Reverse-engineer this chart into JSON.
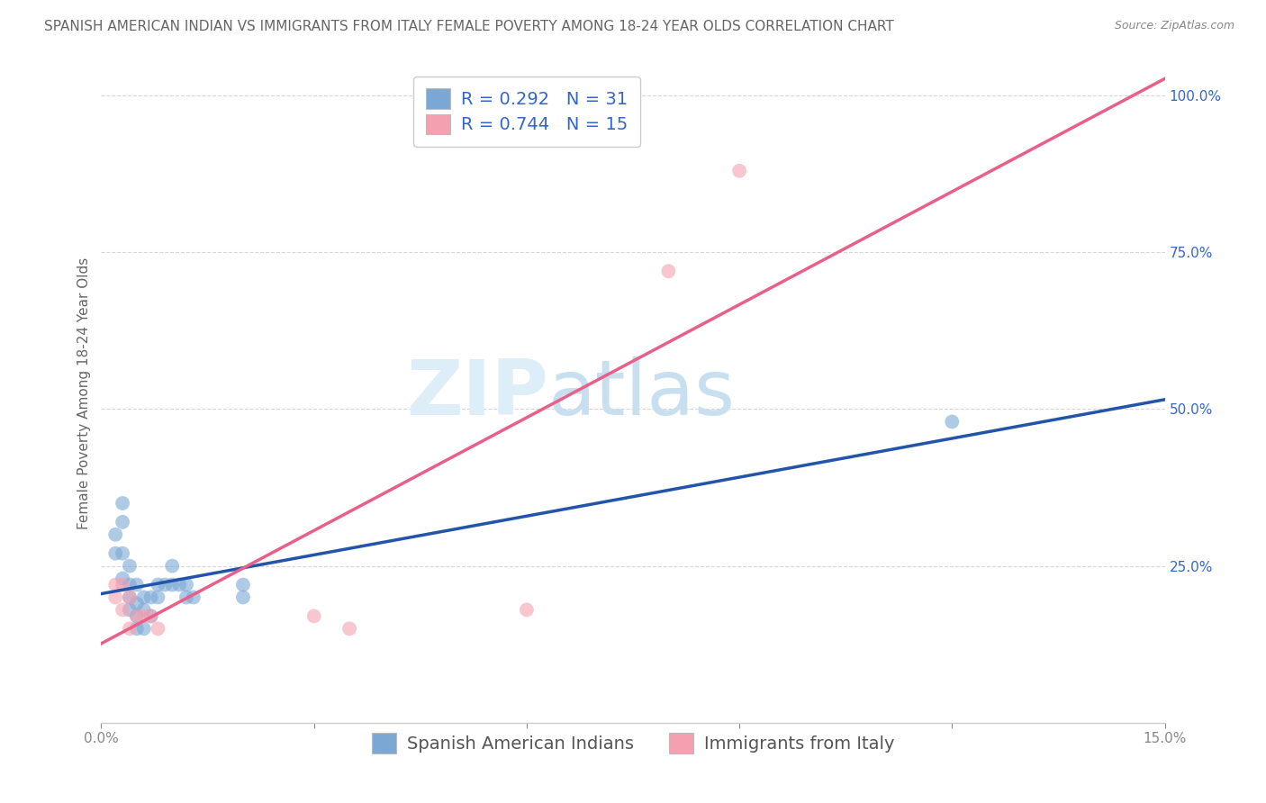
{
  "title": "SPANISH AMERICAN INDIAN VS IMMIGRANTS FROM ITALY FEMALE POVERTY AMONG 18-24 YEAR OLDS CORRELATION CHART",
  "source": "Source: ZipAtlas.com",
  "ylabel": "Female Poverty Among 18-24 Year Olds",
  "xlim": [
    0.0,
    0.15
  ],
  "ylim": [
    0.0,
    1.05
  ],
  "xticks": [
    0.0,
    0.03,
    0.06,
    0.09,
    0.12,
    0.15
  ],
  "xticklabels": [
    "0.0%",
    "",
    "",
    "",
    "",
    "15.0%"
  ],
  "yticks": [
    0.0,
    0.25,
    0.5,
    0.75,
    1.0
  ],
  "yticklabels": [
    "",
    "25.0%",
    "50.0%",
    "75.0%",
    "100.0%"
  ],
  "series1_name": "Spanish American Indians",
  "series1_color": "#7ba7d4",
  "series1_R": "0.292",
  "series1_N": "31",
  "series1_line_color": "#2255aa",
  "series2_name": "Immigrants from Italy",
  "series2_color": "#f4a0b0",
  "series2_R": "0.744",
  "series2_N": "15",
  "series2_line_color": "#e8608a",
  "legend_text_color": "#3366cc",
  "background_color": "#ffffff",
  "grid_color": "#cccccc",
  "watermark_zip": "ZIP",
  "watermark_atlas": "atlas",
  "series1_x": [
    0.002,
    0.002,
    0.003,
    0.003,
    0.003,
    0.003,
    0.004,
    0.004,
    0.004,
    0.004,
    0.005,
    0.005,
    0.005,
    0.005,
    0.006,
    0.006,
    0.006,
    0.007,
    0.007,
    0.008,
    0.008,
    0.009,
    0.01,
    0.01,
    0.011,
    0.012,
    0.012,
    0.013,
    0.02,
    0.02,
    0.12
  ],
  "series1_y": [
    0.27,
    0.3,
    0.32,
    0.35,
    0.27,
    0.23,
    0.22,
    0.25,
    0.2,
    0.18,
    0.22,
    0.19,
    0.17,
    0.15,
    0.2,
    0.18,
    0.15,
    0.2,
    0.17,
    0.22,
    0.2,
    0.22,
    0.25,
    0.22,
    0.22,
    0.22,
    0.2,
    0.2,
    0.22,
    0.2,
    0.48
  ],
  "series2_x": [
    0.002,
    0.002,
    0.003,
    0.003,
    0.004,
    0.004,
    0.005,
    0.006,
    0.007,
    0.008,
    0.03,
    0.035,
    0.06,
    0.08,
    0.09
  ],
  "series2_y": [
    0.22,
    0.2,
    0.22,
    0.18,
    0.2,
    0.15,
    0.17,
    0.17,
    0.17,
    0.15,
    0.17,
    0.15,
    0.18,
    0.72,
    0.88
  ],
  "title_fontsize": 11,
  "axis_label_fontsize": 11,
  "tick_fontsize": 11,
  "legend_fontsize": 14,
  "marker_size": 130,
  "marker_alpha": 0.6
}
